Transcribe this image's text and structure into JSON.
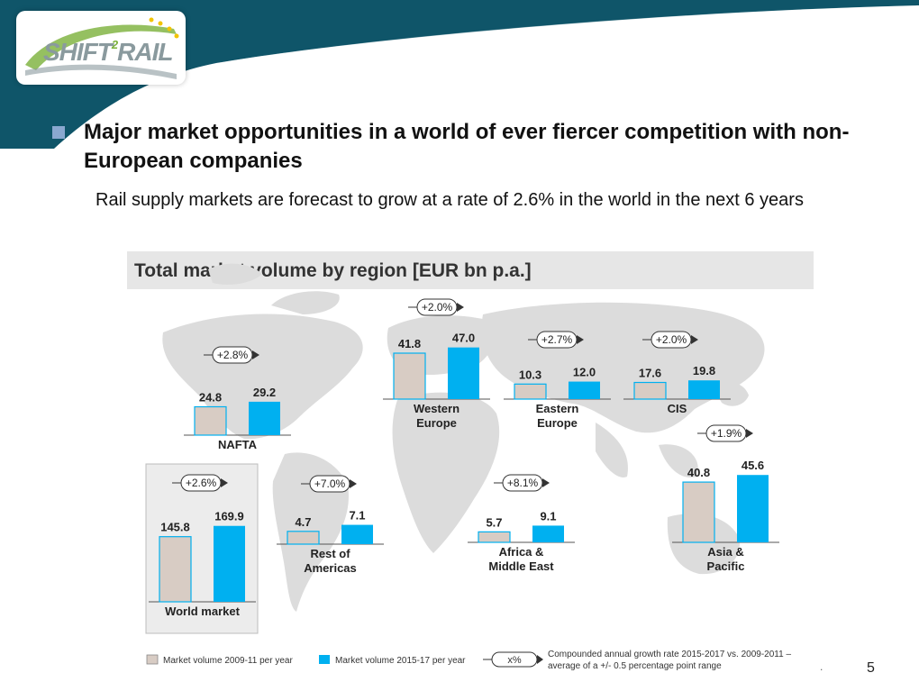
{
  "slide": {
    "heading": "Major market opportunities in a world of ever fiercer competition with non-European companies",
    "subtext": "Rail supply markets are forecast to grow at a rate of 2.6% in the world in the next 6 years",
    "page_number": "5",
    "dot": "."
  },
  "logo": {
    "text_a": "SHIFT",
    "text_sup": "2",
    "text_b": "RAIL"
  },
  "colors": {
    "header": "#0f5569",
    "bar_old": "#d8ccc4",
    "bar_new": "#00b0f0",
    "map": "#d9d9d9"
  },
  "chart_data": {
    "type": "bar",
    "title": "Total market volume by region [EUR bn p.a.]",
    "series_names": [
      "Market volume 2009-11 per year",
      "Market volume 2015-17 per year"
    ],
    "growth_legend_symbol": "x%",
    "growth_legend_text": "Compounded annual growth rate 2015-2017 vs. 2009-2011 – average of a +/- 0.5 percentage point range",
    "regions": [
      {
        "name": "NAFTA",
        "old": 24.8,
        "new": 29.2,
        "old_label": "24.8",
        "new_label": "29.2",
        "growth": "+2.8%"
      },
      {
        "name": "Western Europe",
        "old": 41.8,
        "new": 47.0,
        "old_label": "41.8",
        "new_label": "47.0",
        "growth": "+2.0%"
      },
      {
        "name": "Eastern Europe",
        "old": 10.3,
        "new": 12.0,
        "old_label": "10.3",
        "new_label": "12.0",
        "growth": "+2.7%"
      },
      {
        "name": "CIS",
        "old": 17.6,
        "new": 19.8,
        "old_label": "17.6",
        "new_label": "19.8",
        "growth": "+2.0%"
      },
      {
        "name": "World market",
        "old": 145.8,
        "new": 169.9,
        "old_label": "145.8",
        "new_label": "169.9",
        "growth": "+2.6%"
      },
      {
        "name": "Rest of Americas",
        "old": 4.7,
        "new": 7.1,
        "old_label": "4.7",
        "new_label": "7.1",
        "growth": "+7.0%"
      },
      {
        "name": "Africa & Middle East",
        "old": 5.7,
        "new": 9.1,
        "old_label": "5.7",
        "new_label": "9.1",
        "growth": "+8.1%"
      },
      {
        "name": "Asia & Pacific",
        "old": 40.8,
        "new": 45.6,
        "old_label": "40.8",
        "new_label": "45.6",
        "growth": "+1.9%"
      }
    ]
  }
}
